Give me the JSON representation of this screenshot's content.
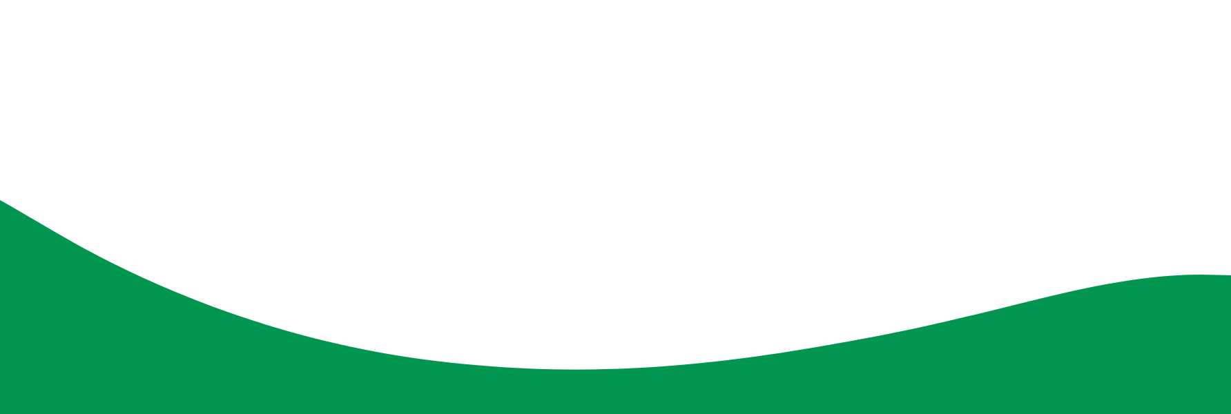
{
  "colors": {
    "background": "#ffffff",
    "wave_fill": "#00964f"
  },
  "graphic": {
    "type": "decorative-wave",
    "shape": "green wave band along the bottom edge"
  }
}
